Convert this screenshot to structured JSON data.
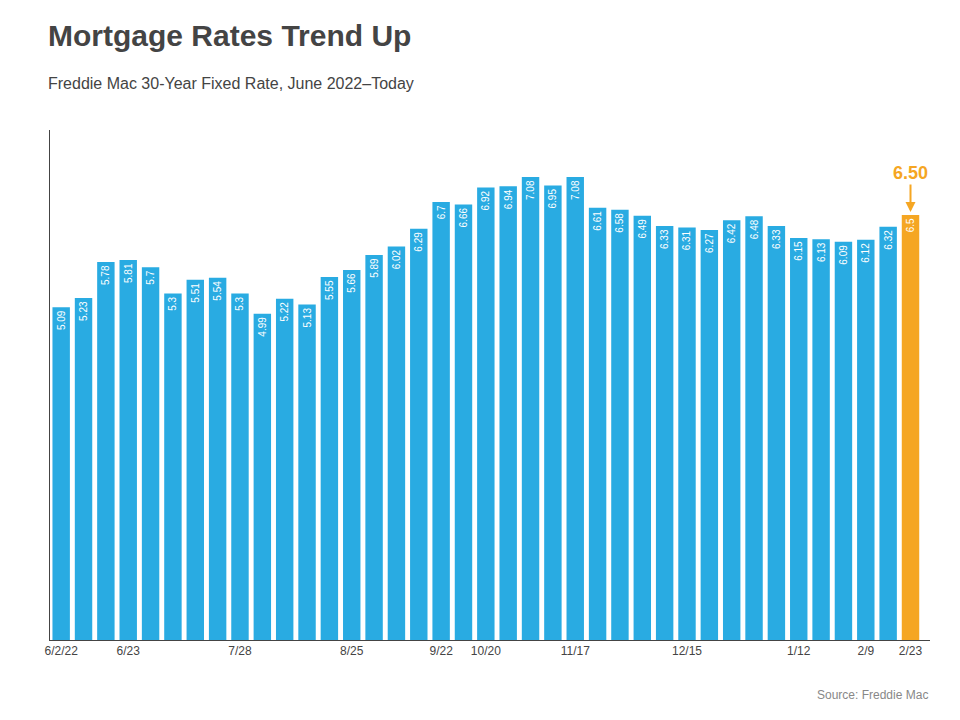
{
  "chart_data": {
    "type": "bar",
    "title": "Mortgage Rates Trend Up",
    "subtitle": "Freddie Mac 30-Year Fixed Rate, June 2022–Today",
    "source": "Source: Freddie Mac",
    "categories": [
      "6/2/22",
      null,
      null,
      "6/23",
      null,
      null,
      null,
      null,
      "7/28",
      null,
      null,
      null,
      null,
      "8/25",
      null,
      null,
      null,
      "9/22",
      null,
      "10/20",
      null,
      null,
      null,
      "11/17",
      null,
      null,
      null,
      null,
      "12/15",
      null,
      null,
      null,
      null,
      "1/12",
      null,
      null,
      "2/9",
      null,
      "2/23"
    ],
    "values": [
      5.09,
      5.23,
      5.78,
      5.81,
      5.7,
      5.3,
      5.51,
      5.54,
      5.3,
      4.99,
      5.22,
      5.13,
      5.55,
      5.66,
      5.89,
      6.02,
      6.29,
      6.7,
      6.66,
      6.92,
      6.94,
      7.08,
      6.95,
      7.08,
      6.61,
      6.58,
      6.49,
      6.33,
      6.31,
      6.27,
      6.42,
      6.48,
      6.33,
      6.15,
      6.13,
      6.09,
      6.12,
      6.32,
      6.5
    ],
    "colors": [
      "#29abe2",
      "#29abe2",
      "#29abe2",
      "#29abe2",
      "#29abe2",
      "#29abe2",
      "#29abe2",
      "#29abe2",
      "#29abe2",
      "#29abe2",
      "#29abe2",
      "#29abe2",
      "#29abe2",
      "#29abe2",
      "#29abe2",
      "#29abe2",
      "#29abe2",
      "#29abe2",
      "#29abe2",
      "#29abe2",
      "#29abe2",
      "#29abe2",
      "#29abe2",
      "#29abe2",
      "#29abe2",
      "#29abe2",
      "#29abe2",
      "#29abe2",
      "#29abe2",
      "#29abe2",
      "#29abe2",
      "#29abe2",
      "#29abe2",
      "#29abe2",
      "#29abe2",
      "#29abe2",
      "#29abe2",
      "#29abe2",
      "#f5a623"
    ],
    "annotations": [
      {
        "text": "6.50",
        "category": "2/23",
        "color": "#f5a623"
      }
    ],
    "ylim": [
      0,
      7.8
    ],
    "data_labels": true,
    "tick_labels": "x",
    "grid": false
  }
}
